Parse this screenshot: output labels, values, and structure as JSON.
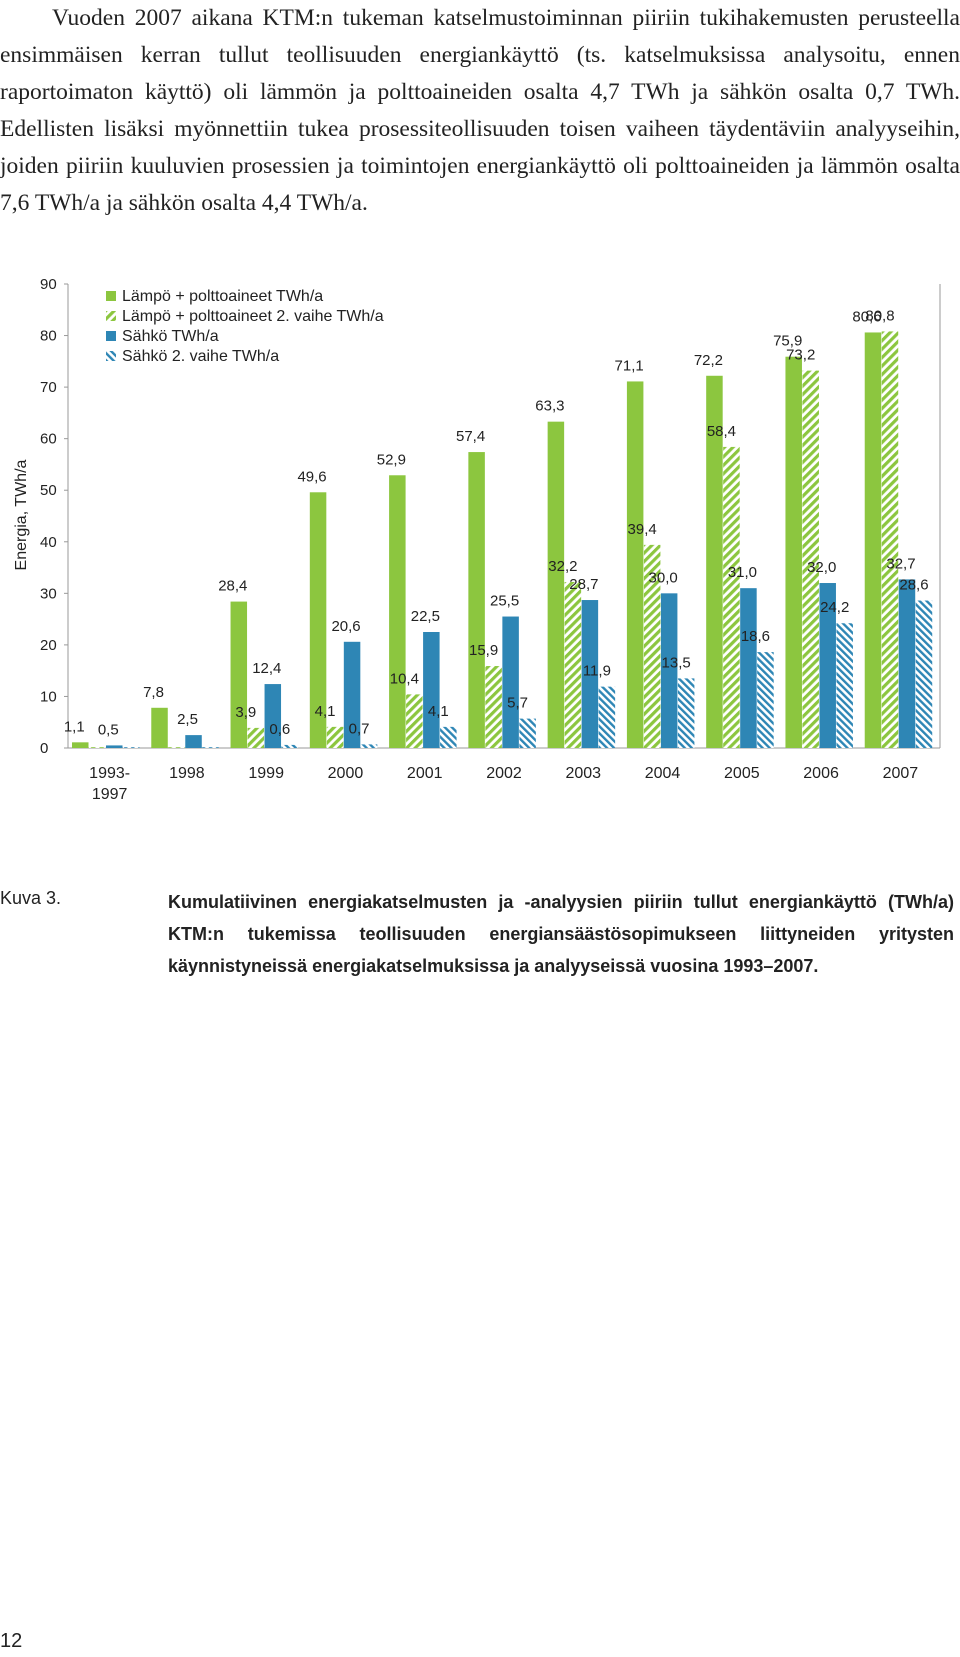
{
  "intro": {
    "text": "Vuoden 2007 aikana KTM:n tukeman katselmustoiminnan piiriin tukihakemusten perusteella ensimmäisen kerran tullut teollisuuden energiankäyttö (ts. katselmuksissa analysoitu, ennen raportoimaton käyttö) oli lämmön ja polttoaineiden osalta 4,7 TWh ja sähkön osalta 0,7 TWh. Edellisten lisäksi myönnettiin tukea prosessiteollisuuden toisen vaiheen täydentäviin analyyseihin, joiden piiriin kuuluvien prosessien ja toimintojen energiankäyttö oli polttoaineiden ja lämmön osalta 7,6 TWh/a ja sähkön osalta 4,4 TWh/a."
  },
  "chart_data": {
    "type": "bar",
    "ylabel": "Energia, TWh/a",
    "xlabel": "",
    "ylim": [
      0,
      90
    ],
    "yticks": [
      "0",
      "10",
      "20",
      "30",
      "40",
      "50",
      "60",
      "70",
      "80",
      "90"
    ],
    "categories": [
      [
        "1993-",
        "1997"
      ],
      [
        "1998"
      ],
      [
        "1999"
      ],
      [
        "2000"
      ],
      [
        "2001"
      ],
      [
        "2002"
      ],
      [
        "2003"
      ],
      [
        "2004"
      ],
      [
        "2005"
      ],
      [
        "2006"
      ],
      [
        "2007"
      ]
    ],
    "legend_position": "top-left",
    "series": [
      {
        "name": "Lämpö + polttoaineet TWh/a",
        "style": "solid",
        "color": "#8cc63f",
        "values": [
          1.1,
          7.8,
          28.4,
          49.6,
          52.9,
          57.4,
          63.3,
          71.1,
          72.2,
          75.9,
          80.6
        ],
        "labels": [
          "1,1",
          "7,8",
          "28,4",
          "49,6",
          "52,9",
          "57,4",
          "63,3",
          "71,1",
          "72,2",
          "75,9",
          "80,6"
        ]
      },
      {
        "name": "Lämpö + polttoaineet 2. vaihe TWh/a",
        "style": "hatched",
        "color": "#8cc63f",
        "values": [
          0,
          0,
          3.9,
          4.1,
          10.4,
          15.9,
          32.2,
          39.4,
          58.4,
          73.2,
          80.8
        ],
        "labels": [
          "",
          "",
          "3,9",
          "4,1",
          "10,4",
          "15,9",
          "32,2",
          "39,4",
          "58,4",
          "73,2",
          "80,8"
        ]
      },
      {
        "name": "Sähkö TWh/a",
        "style": "solid",
        "color": "#2e86b5",
        "values": [
          0.5,
          2.5,
          12.4,
          20.6,
          22.5,
          25.5,
          28.7,
          30.0,
          31.0,
          32.0,
          32.7
        ],
        "labels": [
          "0,5",
          "2,5",
          "12,4",
          "20,6",
          "22,5",
          "25,5",
          "28,7",
          "30,0",
          "31,0",
          "32,0",
          "32,7"
        ]
      },
      {
        "name": "Sähkö 2. vaihe TWh/a",
        "style": "hatched",
        "color": "#2e86b5",
        "values": [
          0,
          0,
          0.6,
          0.7,
          4.1,
          5.7,
          11.9,
          13.5,
          18.6,
          24.2,
          28.6
        ],
        "labels": [
          "",
          "",
          "0,6",
          "0,7",
          "4,1",
          "5,7",
          "11,9",
          "13,5",
          "18,6",
          "24,2",
          "28,6"
        ]
      }
    ]
  },
  "caption": {
    "label": "Kuva 3.",
    "text": "Kumulatiivinen energiakatselmusten ja -analyysien piiriin tullut energiankäyttö (TWh/a) KTM:n tukemissa teollisuuden energiansäästösopimukseen liittyneiden yritysten käynnistyneissä energiakatselmuksissa ja analyyseissä vuosina 1993–2007."
  },
  "page": {
    "number": "12"
  }
}
